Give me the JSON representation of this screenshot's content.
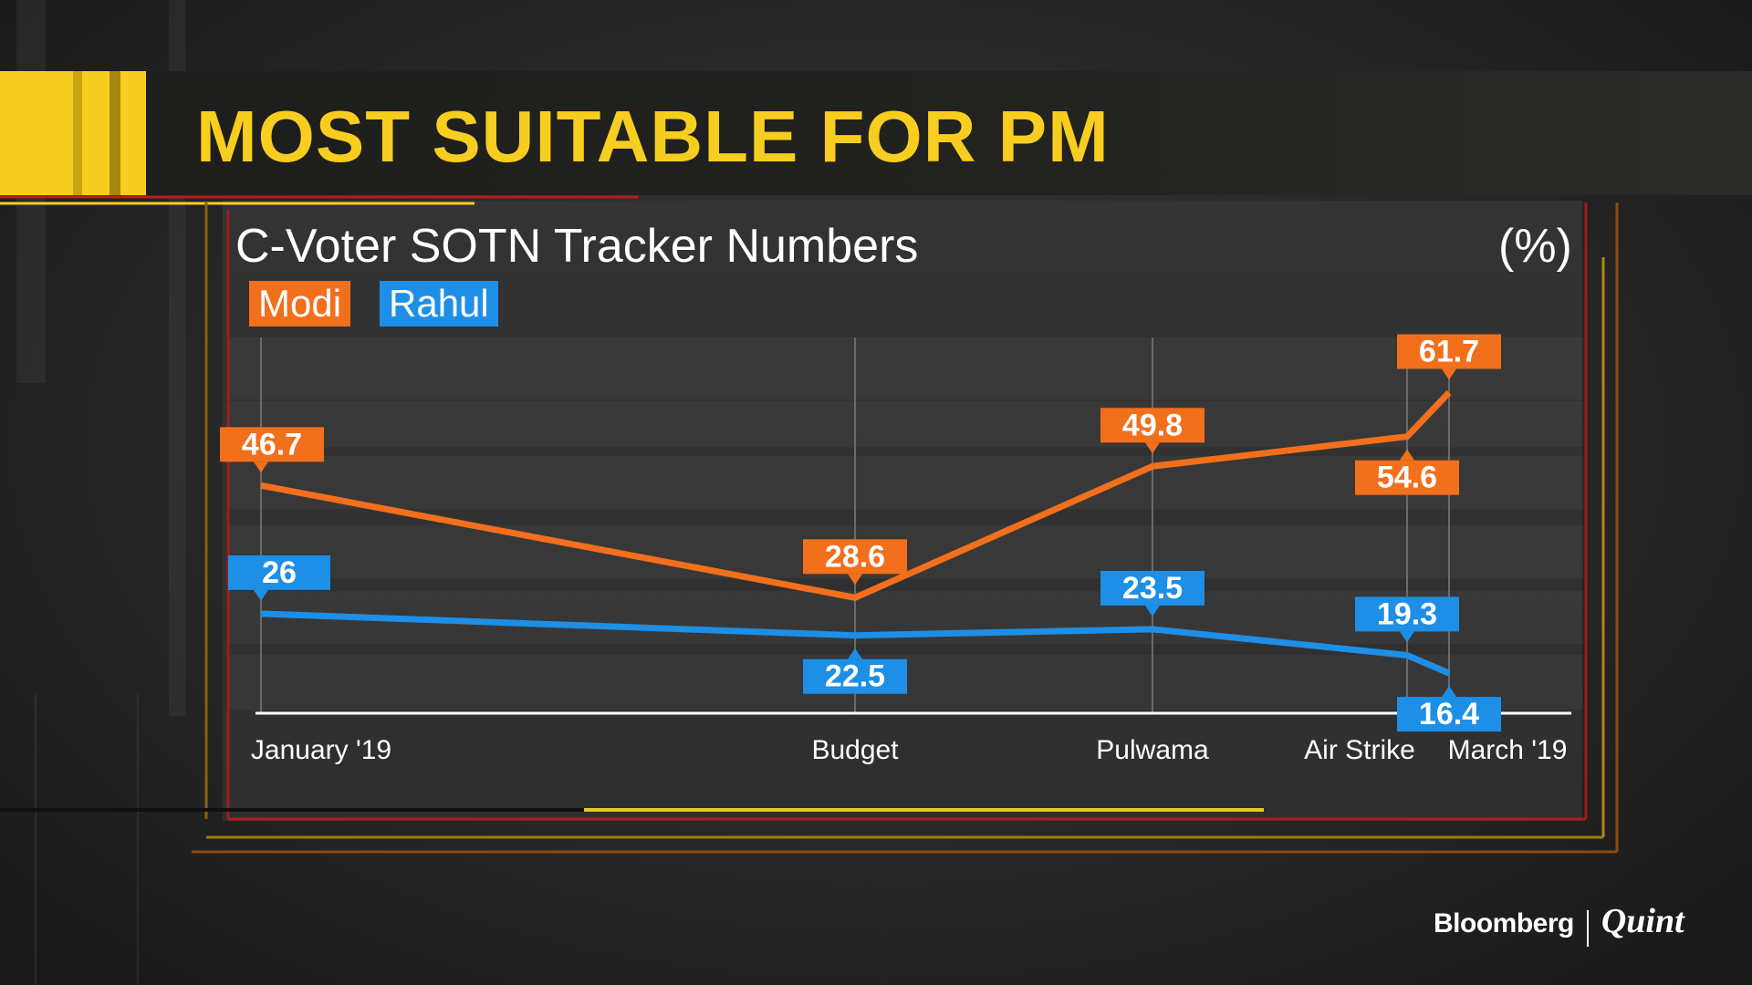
{
  "headline": "MOST SUITABLE FOR PM",
  "brand": {
    "name": "Bloomberg",
    "partner": "Quint"
  },
  "colors": {
    "accent_yellow": "#f7ce1f",
    "modi": "#f26f1c",
    "rahul": "#1e8fe6"
  },
  "chart_data": {
    "type": "line",
    "title": "C-Voter SOTN Tracker Numbers",
    "unit_label": "(%)",
    "categories": [
      "January '19",
      "Budget",
      "Pulwama",
      "Air Strike",
      "March '19"
    ],
    "series": [
      {
        "name": "Modi",
        "color": "#f26f1c",
        "values": [
          46.7,
          28.6,
          49.8,
          54.6,
          61.7
        ]
      },
      {
        "name": "Rahul",
        "color": "#1e8fe6",
        "values": [
          26,
          22.5,
          23.5,
          19.3,
          16.4
        ]
      }
    ],
    "legend_position": "top-left",
    "data_labels": true,
    "grid": "vertical"
  }
}
